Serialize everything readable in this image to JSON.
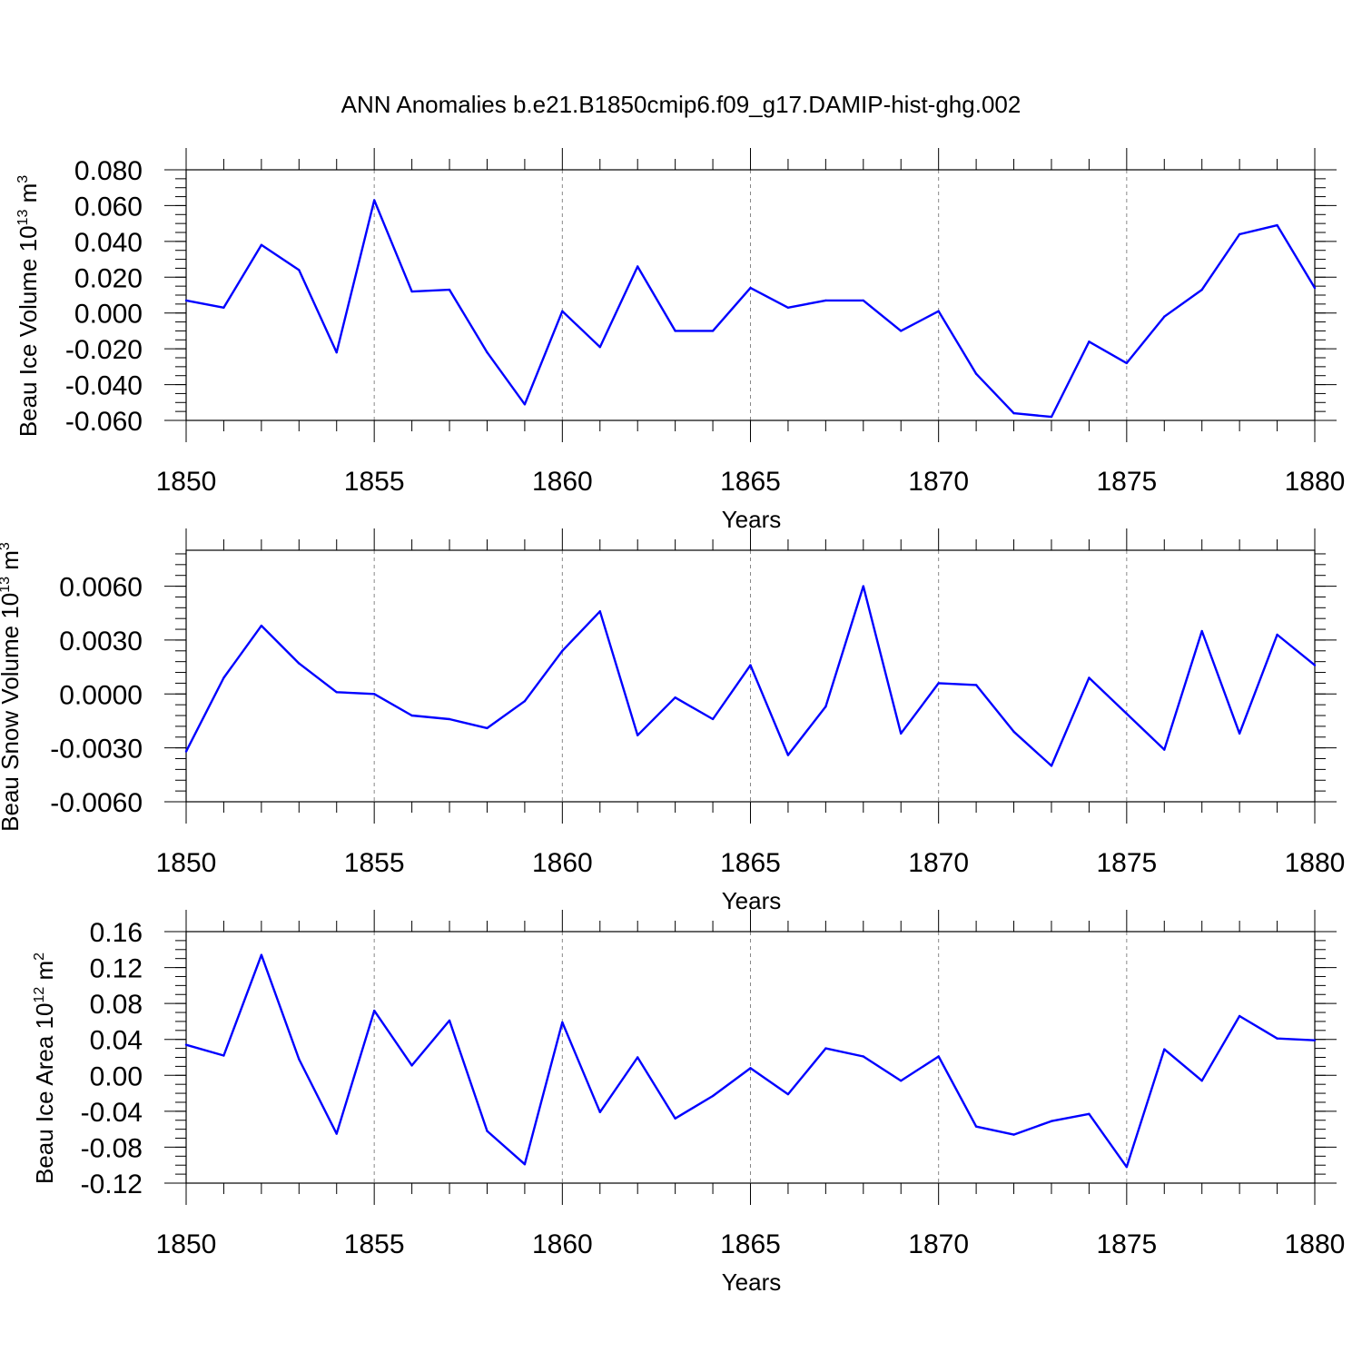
{
  "title": "ANN Anomalies b.e21.B1850cmip6.f09_g17.DAMIP-hist-ghg.002",
  "colors": {
    "series": "#0000ff",
    "axes": "#000000",
    "refline": "#888888"
  },
  "chart_data": [
    {
      "type": "line",
      "ylabel": "Beau Ice Volume 10",
      "ylabel_exp": "13",
      "ylabel_unit": " m",
      "ylabel_unit_exp": "3",
      "xlabel": "Years",
      "xlim": [
        1850,
        1880
      ],
      "ylim": [
        -0.06,
        0.08
      ],
      "xticks": [
        1850,
        1855,
        1860,
        1865,
        1870,
        1875,
        1880
      ],
      "xtick_labels": [
        "1850",
        "1855",
        "1860",
        "1865",
        "1870",
        "1875",
        "1880"
      ],
      "yticks": [
        -0.06,
        -0.04,
        -0.02,
        0,
        0.02,
        0.04,
        0.06,
        0.08
      ],
      "ytick_labels": [
        "-0.060",
        "-0.040",
        "-0.020",
        "0.000",
        "0.020",
        "0.040",
        "0.060",
        "0.080"
      ],
      "yminor_step": 0.005,
      "reference_lines_x": [
        1855,
        1860,
        1865,
        1870,
        1875
      ],
      "x": [
        1850,
        1851,
        1852,
        1853,
        1854,
        1855,
        1856,
        1857,
        1858,
        1859,
        1860,
        1861,
        1862,
        1863,
        1864,
        1865,
        1866,
        1867,
        1868,
        1869,
        1870,
        1871,
        1872,
        1873,
        1874,
        1875,
        1876,
        1877,
        1878,
        1879,
        1880
      ],
      "y": [
        0.007,
        0.003,
        0.038,
        0.024,
        -0.022,
        0.063,
        0.012,
        0.013,
        -0.022,
        -0.051,
        0.001,
        -0.019,
        0.026,
        -0.01,
        -0.01,
        0.014,
        0.003,
        0.007,
        0.007,
        -0.01,
        0.001,
        -0.034,
        -0.056,
        -0.058,
        -0.016,
        -0.028,
        -0.002,
        0.013,
        0.044,
        0.049,
        0.014
      ]
    },
    {
      "type": "line",
      "ylabel": "Beau Snow Volume 10",
      "ylabel_exp": "13",
      "ylabel_unit": " m",
      "ylabel_unit_exp": "3",
      "xlabel": "Years",
      "xlim": [
        1850,
        1880
      ],
      "ylim": [
        -0.006,
        0.008
      ],
      "xticks": [
        1850,
        1855,
        1860,
        1865,
        1870,
        1875,
        1880
      ],
      "xtick_labels": [
        "1850",
        "1855",
        "1860",
        "1865",
        "1870",
        "1875",
        "1880"
      ],
      "yticks": [
        -0.006,
        -0.003,
        0,
        0.003,
        0.006
      ],
      "ytick_labels": [
        "-0.0060",
        "-0.0030",
        "0.0000",
        "0.0030",
        "0.0060"
      ],
      "yminor_step": 0.0006,
      "reference_lines_x": [
        1855,
        1860,
        1865,
        1870,
        1875
      ],
      "x": [
        1850,
        1851,
        1852,
        1853,
        1854,
        1855,
        1856,
        1857,
        1858,
        1859,
        1860,
        1861,
        1862,
        1863,
        1864,
        1865,
        1866,
        1867,
        1868,
        1869,
        1870,
        1871,
        1872,
        1873,
        1874,
        1875,
        1876,
        1877,
        1878,
        1879,
        1880
      ],
      "y": [
        -0.0032,
        0.0009,
        0.0038,
        0.0017,
        0.0001,
        0.0,
        -0.0012,
        -0.0014,
        -0.0019,
        -0.0004,
        0.0024,
        0.0046,
        -0.0023,
        -0.0002,
        -0.0014,
        0.0016,
        -0.0034,
        -0.0007,
        0.006,
        -0.0022,
        0.0006,
        0.0005,
        -0.0021,
        -0.004,
        0.0009,
        -0.0011,
        -0.0031,
        0.0035,
        -0.0022,
        0.0033,
        0.0016
      ]
    },
    {
      "type": "line",
      "ylabel": "Beau Ice Area 10",
      "ylabel_exp": "12",
      "ylabel_unit": " m",
      "ylabel_unit_exp": "2",
      "xlabel": "Years",
      "xlim": [
        1850,
        1880
      ],
      "ylim": [
        -0.12,
        0.16
      ],
      "xticks": [
        1850,
        1855,
        1860,
        1865,
        1870,
        1875,
        1880
      ],
      "xtick_labels": [
        "1850",
        "1855",
        "1860",
        "1865",
        "1870",
        "1875",
        "1880"
      ],
      "yticks": [
        -0.12,
        -0.08,
        -0.04,
        0,
        0.04,
        0.08,
        0.12,
        0.16
      ],
      "ytick_labels": [
        "-0.12",
        "-0.08",
        "-0.04",
        "0.00",
        "0.04",
        "0.08",
        "0.12",
        "0.16"
      ],
      "yminor_step": 0.01,
      "reference_lines_x": [
        1855,
        1860,
        1865,
        1870,
        1875
      ],
      "x": [
        1850,
        1851,
        1852,
        1853,
        1854,
        1855,
        1856,
        1857,
        1858,
        1859,
        1860,
        1861,
        1862,
        1863,
        1864,
        1865,
        1866,
        1867,
        1868,
        1869,
        1870,
        1871,
        1872,
        1873,
        1874,
        1875,
        1876,
        1877,
        1878,
        1879,
        1880
      ],
      "y": [
        0.034,
        0.022,
        0.134,
        0.018,
        -0.065,
        0.072,
        0.011,
        0.061,
        -0.062,
        -0.099,
        0.059,
        -0.041,
        0.02,
        -0.048,
        -0.023,
        0.008,
        -0.021,
        0.03,
        0.021,
        -0.006,
        0.021,
        -0.057,
        -0.066,
        -0.051,
        -0.043,
        -0.102,
        0.029,
        -0.006,
        0.066,
        0.041,
        0.039
      ]
    }
  ]
}
